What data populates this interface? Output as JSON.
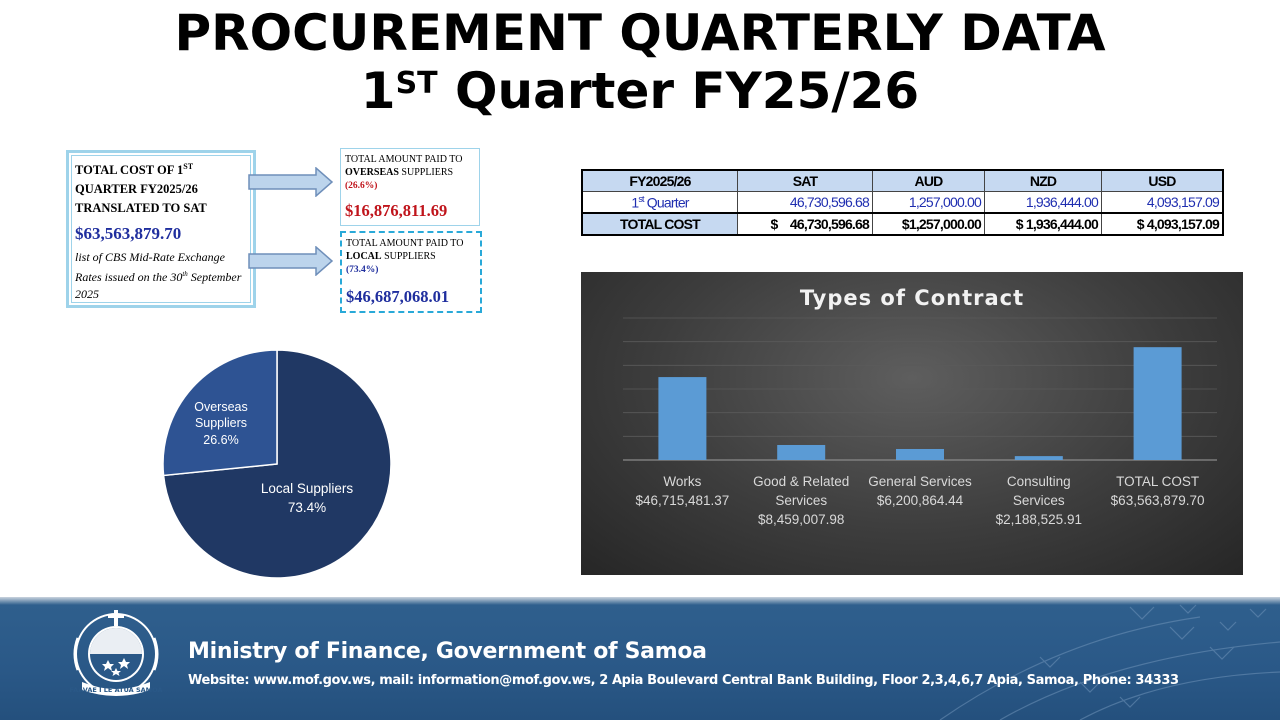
{
  "title": {
    "line1": "PROCUREMENT QUARTERLY DATA",
    "line2_num": "1",
    "line2_sup": "ST",
    "line2_rest": " Quarter FY25/26"
  },
  "total_box": {
    "heading_a": "TOTAL COST OF 1",
    "heading_sup": "ST",
    "heading_b": "QUARTER FY2025/26 TRANSLATED TO SAT",
    "amount": "$63,563,879.70",
    "note_a": "list of CBS Mid-Rate Exchange Rates issued on the 30",
    "note_sup": "th",
    "note_b": " September 2025"
  },
  "overseas_box": {
    "label_a": "TOTAL AMOUNT PAID TO",
    "label_b": "OVERSEAS",
    "label_c": " SUPPLIERS",
    "percent": "(26.6%)",
    "amount": "$16,876,811.69"
  },
  "local_box": {
    "label_a": "TOTAL AMOUNT PAID TO",
    "label_b": "LOCAL",
    "label_c": " SUPPLIERS",
    "percent": "(73.4%)",
    "amount": "$46,687,068.01"
  },
  "currency_table": {
    "headers": [
      "FY2025/26",
      "SAT",
      "AUD",
      "NZD",
      "USD"
    ],
    "quarter_row": {
      "label_num": "1",
      "label_sup": "st",
      "label_rest": " Quarter",
      "values": [
        "46,730,596.68",
        "1,257,000.00",
        "1,936,444.00",
        "4,093,157.09"
      ]
    },
    "total_row": {
      "label": "TOTAL COST",
      "values": [
        "$    46,730,596.68",
        "$1,257,000.00",
        "$ 1,936,444.00",
        "$ 4,093,157.09"
      ]
    }
  },
  "pie_chart": {
    "slices": [
      {
        "label": "Overseas Suppliers",
        "label_line1": "Overseas",
        "label_line2": "Suppliers",
        "percent_label": "26.6%",
        "value": 26.6,
        "color": "#2e5393"
      },
      {
        "label": "Local Suppliers",
        "label_line1": "Local Suppliers",
        "percent_label": "73.4%",
        "value": 73.4,
        "color": "#203864"
      }
    ]
  },
  "chart_data": {
    "type": "bar",
    "title": "Types of Contract",
    "categories": [
      "Works",
      "Good & Related Services",
      "General Services",
      "Consulting Services",
      "TOTAL COST"
    ],
    "category_label_lines": [
      [
        "Works",
        "$46,715,481.37"
      ],
      [
        "Good & Related",
        "Services",
        "$8,459,007.98"
      ],
      [
        "General Services",
        "$6,200,864.44"
      ],
      [
        "Consulting",
        "Services",
        "$2,188,525.91"
      ],
      [
        "TOTAL COST",
        "$63,563,879.70"
      ]
    ],
    "values": [
      46715481.37,
      8459007.98,
      6200864.44,
      2188525.91,
      63563879.7
    ],
    "ylim": [
      0,
      80000000
    ],
    "grid": true,
    "bar_color": "#5b9bd5"
  },
  "footer": {
    "ministry": "Ministry of Finance, Government of Samoa",
    "contact": "Website: www.mof.gov.ws, mail: information@mof.gov.ws, 2 Apia Boulevard Central Bank Building, Floor 2,3,4,6,7 Apia, Samoa, Phone: 34333",
    "seal_motto": "FAAVAE I LE ATUA SAMOA"
  }
}
